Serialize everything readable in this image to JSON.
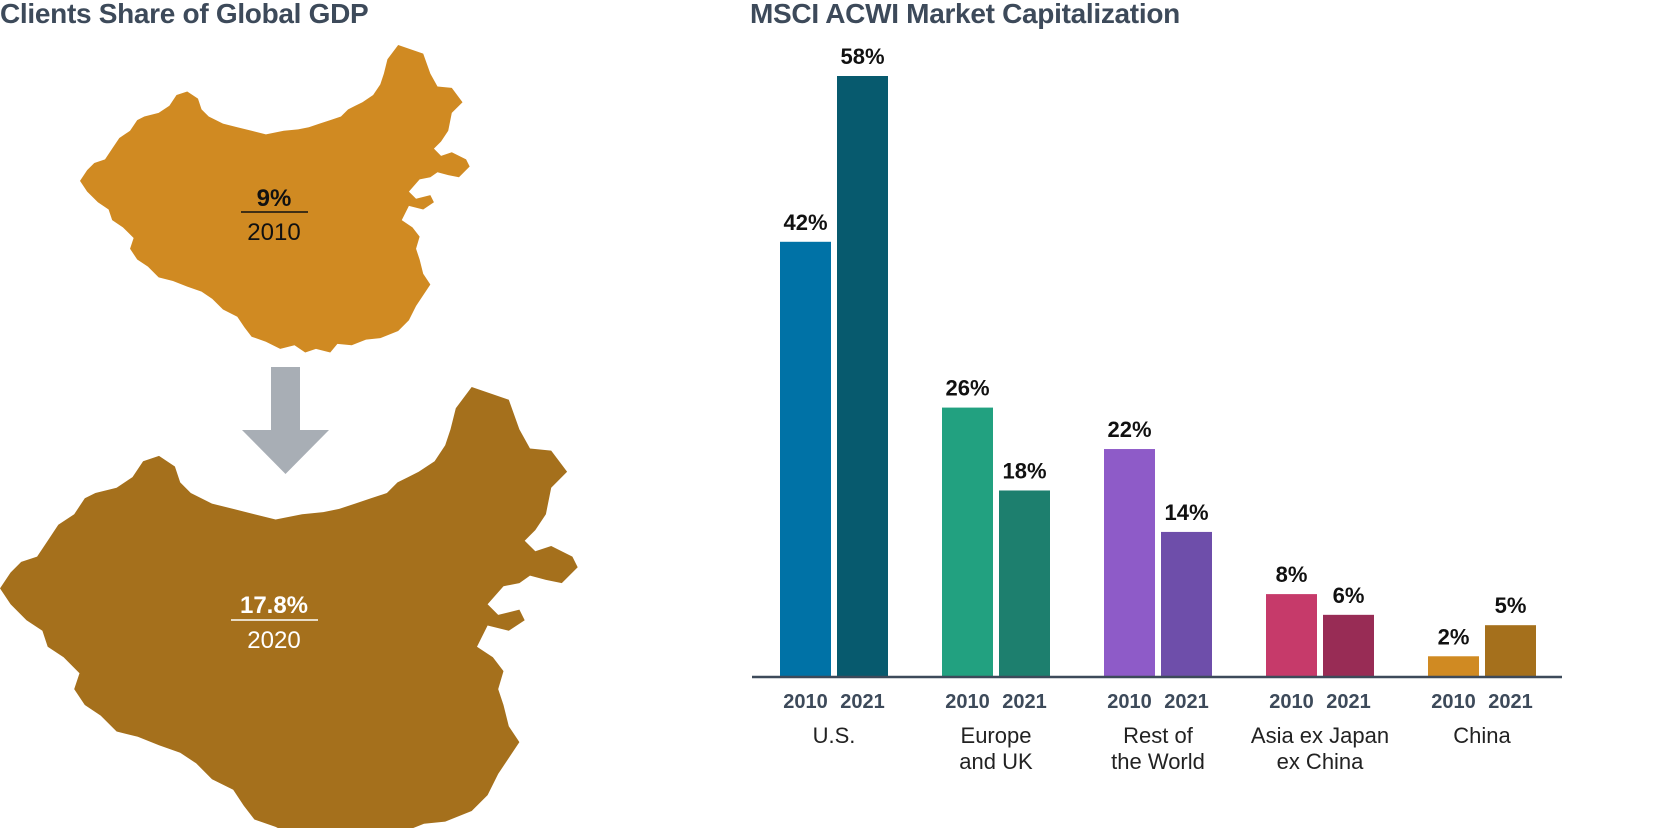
{
  "left_panel": {
    "title": "Clients Share of Global GDP",
    "map_top": {
      "value": "9%",
      "year": "2010",
      "color": "#D08A22"
    },
    "map_bottom": {
      "value": "17.8%",
      "year": "2020",
      "color": "#A5701C"
    },
    "arrow_color": "#A8AEB5"
  },
  "chart_data": {
    "type": "bar",
    "title": "MSCI ACWI Market Capitalization",
    "xlabel": "",
    "ylabel": "",
    "ylim": [
      0,
      60
    ],
    "grid": false,
    "categories": [
      "U.S.",
      "Europe and UK",
      "Rest of the World",
      "Asia ex Japan ex China",
      "China"
    ],
    "category_lines": [
      [
        "U.S."
      ],
      [
        "Europe",
        "and UK"
      ],
      [
        "Rest of",
        "the World"
      ],
      [
        "Asia ex Japan",
        "ex China"
      ],
      [
        "China"
      ]
    ],
    "series": [
      {
        "year": "2010",
        "values": [
          42,
          26,
          22,
          8,
          2
        ],
        "labels": [
          "42%",
          "26%",
          "22%",
          "8%",
          "2%"
        ]
      },
      {
        "year": "2021",
        "values": [
          58,
          18,
          14,
          6,
          5
        ],
        "labels": [
          "58%",
          "18%",
          "14%",
          "6%",
          "5%"
        ]
      }
    ],
    "colors": [
      [
        "#0072A6",
        "#075A6E"
      ],
      [
        "#22A180",
        "#1D7F6E"
      ],
      [
        "#8E5BC8",
        "#6E4EAA"
      ],
      [
        "#C63A6A",
        "#982C55"
      ],
      [
        "#D08A22",
        "#A5701C"
      ]
    ],
    "axis_color": "#3d4a5a"
  }
}
